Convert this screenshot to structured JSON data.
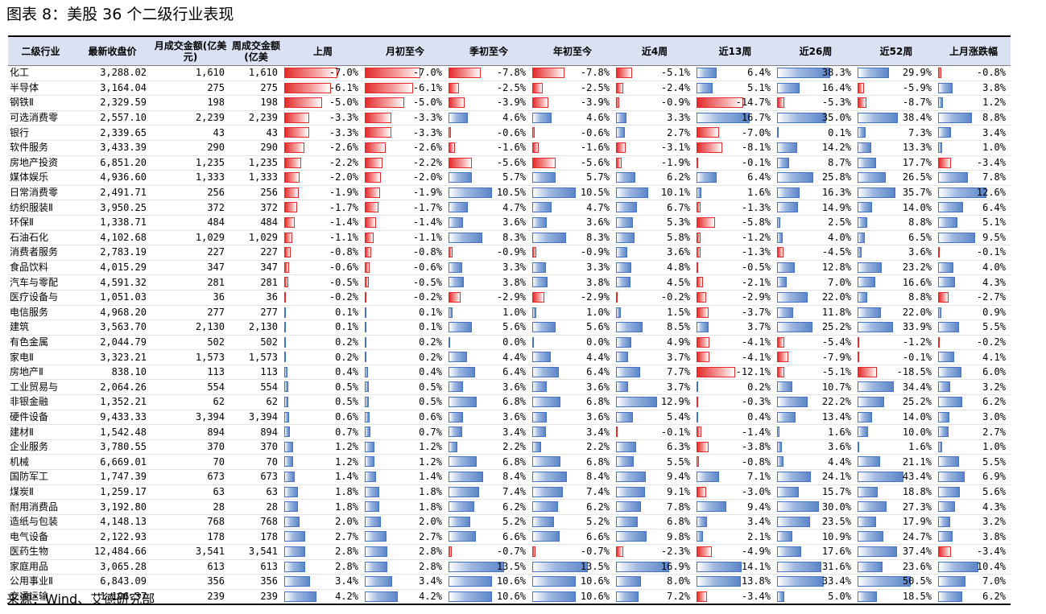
{
  "title": "图表 8：美股 36 个二级行业表现",
  "source": "来源：Wind、艾德研究部",
  "headers": [
    "二级行业",
    "最新收盘价",
    "月成交金额(亿美元)",
    "周成交金额(亿美",
    "上周",
    "月初至今",
    "季初至今",
    "年初至今",
    "近4周",
    "近13周",
    "近26周",
    "近52周",
    "上月涨跌幅"
  ],
  "colors": {
    "positive_bar": "#5b86c8",
    "negative_bar": "#e32b2b",
    "header_bg": "#d9e1f2"
  },
  "rows": [
    [
      "化工",
      "3,288.02",
      "1,610",
      "1,610",
      -7.0,
      -7.0,
      -7.8,
      -7.8,
      -5.1,
      6.4,
      38.3,
      29.9,
      -0.8
    ],
    [
      "半导体",
      "3,164.04",
      "275",
      "275",
      -6.1,
      -6.1,
      -2.5,
      -2.5,
      -2.4,
      5.1,
      16.4,
      -5.9,
      3.8
    ],
    [
      "钢铁Ⅱ",
      "2,329.59",
      "198",
      "198",
      -5.0,
      -5.0,
      -3.9,
      -3.9,
      -0.9,
      -14.7,
      -5.3,
      -8.7,
      1.2
    ],
    [
      "可选消费零",
      "2,557.10",
      "2,239",
      "2,239",
      -3.3,
      -3.3,
      4.6,
      4.6,
      3.3,
      16.7,
      35.0,
      38.4,
      8.8
    ],
    [
      "银行",
      "2,339.65",
      "43",
      "43",
      -3.3,
      -3.3,
      -0.6,
      -0.6,
      2.7,
      -7.0,
      0.1,
      7.3,
      3.4
    ],
    [
      "软件服务",
      "3,433.39",
      "290",
      "290",
      -2.6,
      -2.6,
      -1.6,
      -1.6,
      -3.1,
      -8.1,
      14.2,
      13.3,
      1.0
    ],
    [
      "房地产投资",
      "6,851.20",
      "1,235",
      "1,235",
      -2.2,
      -2.2,
      -5.6,
      -5.6,
      -1.9,
      -0.1,
      8.7,
      17.7,
      -3.4
    ],
    [
      "媒体娱乐",
      "4,936.60",
      "1,333",
      "1,333",
      -2.0,
      -2.0,
      5.7,
      5.7,
      6.2,
      6.4,
      25.8,
      26.5,
      7.8
    ],
    [
      "日常消费零",
      "2,491.71",
      "256",
      "256",
      -1.9,
      -1.9,
      10.5,
      10.5,
      10.1,
      1.6,
      16.3,
      35.7,
      12.6
    ],
    [
      "纺织服装Ⅱ",
      "3,950.25",
      "372",
      "372",
      -1.7,
      -1.7,
      4.7,
      4.7,
      6.7,
      -1.3,
      14.9,
      14.0,
      6.4
    ],
    [
      "环保Ⅱ",
      "1,338.71",
      "484",
      "484",
      -1.4,
      -1.4,
      3.6,
      3.6,
      5.3,
      -5.8,
      2.5,
      8.8,
      5.1
    ],
    [
      "石油石化",
      "4,102.68",
      "1,029",
      "1,029",
      -1.1,
      -1.1,
      8.3,
      8.3,
      5.8,
      -1.2,
      4.0,
      6.5,
      9.5
    ],
    [
      "消费者服务",
      "2,783.19",
      "227",
      "227",
      -0.8,
      -0.8,
      -0.9,
      -0.9,
      3.6,
      -1.3,
      -4.5,
      3.6,
      -0.1
    ],
    [
      "食品饮料",
      "4,015.29",
      "347",
      "347",
      -0.6,
      -0.6,
      3.3,
      3.3,
      4.8,
      -0.5,
      12.8,
      23.2,
      4.0
    ],
    [
      "汽车与零配",
      "4,591.32",
      "281",
      "281",
      -0.5,
      -0.5,
      3.8,
      3.8,
      4.5,
      -2.1,
      7.0,
      16.6,
      4.3
    ],
    [
      "医疗设备与",
      "1,051.03",
      "36",
      "36",
      -0.2,
      -0.2,
      -2.9,
      -2.9,
      -0.2,
      -2.9,
      22.0,
      8.8,
      -2.7
    ],
    [
      "电信服务",
      "4,968.20",
      "277",
      "277",
      0.1,
      0.1,
      1.0,
      1.0,
      1.5,
      -3.7,
      11.8,
      22.0,
      0.9
    ],
    [
      "建筑",
      "3,563.70",
      "2,130",
      "2,130",
      0.1,
      0.1,
      5.6,
      5.6,
      8.5,
      3.7,
      25.2,
      33.9,
      5.5
    ],
    [
      "有色金属",
      "2,044.79",
      "502",
      "502",
      0.2,
      0.2,
      0.0,
      0.0,
      4.9,
      -4.1,
      -5.4,
      -1.2,
      -0.2
    ],
    [
      "家电Ⅱ",
      "3,323.21",
      "1,573",
      "1,573",
      0.2,
      0.2,
      4.4,
      4.4,
      3.7,
      -4.1,
      -7.9,
      -0.1,
      4.1
    ],
    [
      "房地产Ⅱ",
      "838.10",
      "113",
      "113",
      0.4,
      0.4,
      6.4,
      6.4,
      7.7,
      -12.1,
      -5.1,
      -18.5,
      6.0
    ],
    [
      "工业贸易与",
      "2,064.26",
      "554",
      "554",
      0.5,
      0.5,
      3.6,
      3.6,
      3.7,
      0.2,
      10.7,
      34.4,
      3.2
    ],
    [
      "非银金融",
      "1,352.21",
      "62",
      "62",
      0.5,
      0.5,
      6.8,
      6.8,
      12.9,
      -0.3,
      22.2,
      25.2,
      6.2
    ],
    [
      "硬件设备",
      "9,433.33",
      "3,394",
      "3,394",
      0.6,
      0.6,
      3.6,
      3.6,
      5.4,
      0.4,
      13.4,
      14.0,
      3.0
    ],
    [
      "建材Ⅱ",
      "1,542.48",
      "894",
      "894",
      0.7,
      0.7,
      3.4,
      3.4,
      -0.1,
      -1.4,
      1.6,
      10.0,
      2.7
    ],
    [
      "企业服务",
      "3,780.55",
      "370",
      "370",
      1.2,
      1.2,
      2.2,
      2.2,
      6.3,
      -3.8,
      3.6,
      1.6,
      1.0
    ],
    [
      "机械",
      "6,669.01",
      "70",
      "70",
      1.2,
      1.2,
      6.8,
      6.8,
      5.5,
      -0.8,
      4.4,
      21.1,
      5.5
    ],
    [
      "国防军工",
      "1,747.39",
      "673",
      "673",
      1.4,
      1.4,
      8.4,
      8.4,
      9.4,
      7.1,
      24.1,
      43.4,
      6.9
    ],
    [
      "煤炭Ⅱ",
      "1,259.17",
      "63",
      "63",
      1.8,
      1.8,
      7.4,
      7.4,
      9.1,
      -3.0,
      15.7,
      18.8,
      5.6
    ],
    [
      "耐用消费品",
      "3,192.80",
      "28",
      "28",
      1.8,
      1.8,
      6.2,
      6.2,
      7.8,
      9.4,
      30.0,
      27.3,
      4.3
    ],
    [
      "造纸与包装",
      "4,148.13",
      "768",
      "768",
      2.0,
      2.0,
      5.2,
      5.2,
      6.8,
      3.4,
      23.5,
      17.9,
      3.2
    ],
    [
      "电气设备",
      "2,122.93",
      "178",
      "178",
      2.7,
      2.7,
      6.6,
      6.6,
      9.8,
      2.1,
      10.9,
      24.7,
      3.8
    ],
    [
      "医药生物",
      "12,484.66",
      "3,541",
      "3,541",
      2.8,
      2.8,
      -0.7,
      -0.7,
      -2.3,
      -4.9,
      17.6,
      37.4,
      -3.4
    ],
    [
      "家庭用品",
      "3,065.28",
      "613",
      "613",
      2.8,
      2.8,
      13.5,
      13.5,
      16.9,
      14.1,
      31.6,
      23.6,
      10.4
    ],
    [
      "公用事业Ⅱ",
      "6,843.09",
      "356",
      "356",
      3.4,
      3.4,
      10.6,
      10.6,
      8.0,
      13.8,
      33.4,
      50.5,
      7.0
    ],
    [
      "交通运输",
      "1,196.37",
      "239",
      "239",
      4.2,
      4.2,
      10.6,
      10.6,
      7.2,
      -3.4,
      5.0,
      18.5,
      6.2
    ]
  ]
}
